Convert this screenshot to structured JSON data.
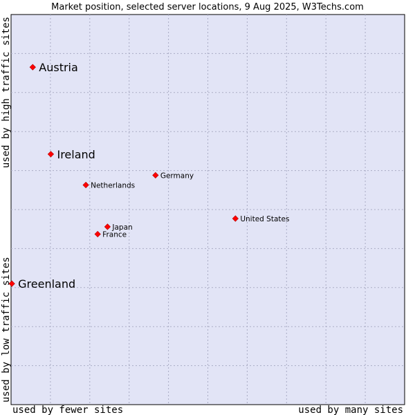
{
  "chart_data": {
    "type": "scatter",
    "title": "Market position, selected server locations, 9 Aug 2025, W3Techs.com",
    "x_axis": {
      "label_low": "used by fewer sites",
      "label_high": "used by many sites",
      "range": [
        0,
        100
      ]
    },
    "y_axis": {
      "label_low": "used by low traffic sites",
      "label_high": "used by high traffic sites",
      "range": [
        0,
        100
      ]
    },
    "grid": true,
    "marker_color": "#ff0000",
    "plot_background": "#e2e4f6",
    "points": [
      {
        "name": "Austria",
        "x": 5.5,
        "y": 86.5,
        "label_size": "large"
      },
      {
        "name": "Ireland",
        "x": 10.1,
        "y": 64.2,
        "label_size": "large"
      },
      {
        "name": "Germany",
        "x": 36.7,
        "y": 58.8,
        "label_size": "small"
      },
      {
        "name": "Netherlands",
        "x": 19.0,
        "y": 56.3,
        "label_size": "small"
      },
      {
        "name": "United States",
        "x": 57.0,
        "y": 47.7,
        "label_size": "small"
      },
      {
        "name": "Japan",
        "x": 24.5,
        "y": 45.6,
        "label_size": "small"
      },
      {
        "name": "France",
        "x": 22.0,
        "y": 43.7,
        "label_size": "small"
      },
      {
        "name": "Greenland",
        "x": 0.2,
        "y": 31.0,
        "label_size": "large"
      }
    ]
  }
}
